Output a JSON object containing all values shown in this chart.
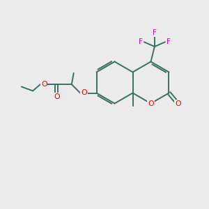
{
  "bg_color": "#ebebeb",
  "bond_color": "#3a7060",
  "oxygen_color": "#ee0000",
  "fluorine_color": "#cc00cc",
  "lw": 1.4,
  "figsize": [
    3.0,
    3.0
  ],
  "dpi": 100,
  "xlim": [
    0,
    10
  ],
  "ylim": [
    0,
    10
  ]
}
